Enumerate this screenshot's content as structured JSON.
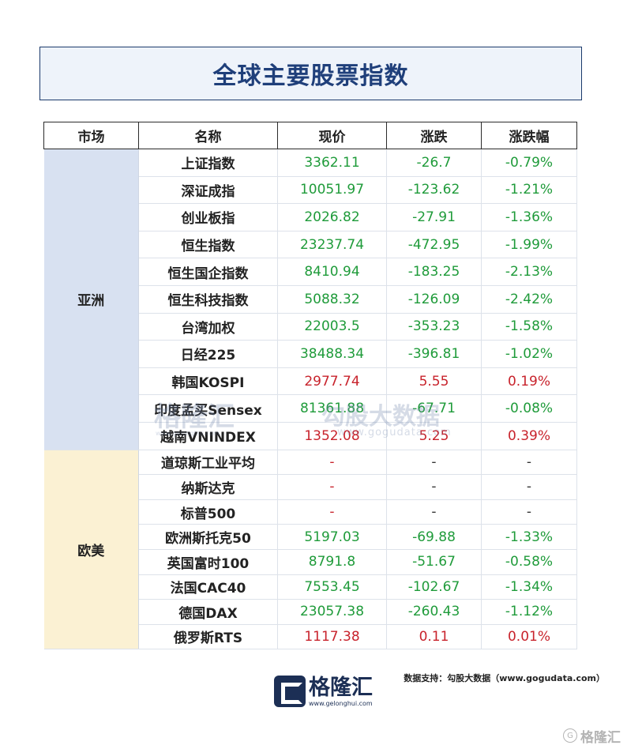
{
  "title": "全球主要股票指数",
  "headers": [
    "市场",
    "名称",
    "现价",
    "涨跌",
    "涨跌幅"
  ],
  "regions": {
    "asia": "亚洲",
    "euam": "欧美"
  },
  "asia_rows": [
    {
      "name": "上证指数",
      "price": "3362.11",
      "change": "-26.7",
      "pct": "-0.79%",
      "dir": "down"
    },
    {
      "name": "深证成指",
      "price": "10051.97",
      "change": "-123.62",
      "pct": "-1.21%",
      "dir": "down"
    },
    {
      "name": "创业板指",
      "price": "2026.82",
      "change": "-27.91",
      "pct": "-1.36%",
      "dir": "down"
    },
    {
      "name": "恒生指数",
      "price": "23237.74",
      "change": "-472.95",
      "pct": "-1.99%",
      "dir": "down"
    },
    {
      "name": "恒生国企指数",
      "price": "8410.94",
      "change": "-183.25",
      "pct": "-2.13%",
      "dir": "down"
    },
    {
      "name": "恒生科技指数",
      "price": "5088.32",
      "change": "-126.09",
      "pct": "-2.42%",
      "dir": "down"
    },
    {
      "name": "台湾加权",
      "price": "22003.5",
      "change": "-353.23",
      "pct": "-1.58%",
      "dir": "down"
    },
    {
      "name": "日经225",
      "price": "38488.34",
      "change": "-396.81",
      "pct": "-1.02%",
      "dir": "down"
    },
    {
      "name": "韩国KOSPI",
      "price": "2977.74",
      "change": "5.55",
      "pct": "0.19%",
      "dir": "up"
    },
    {
      "name": "印度孟买Sensex",
      "price": "81361.88",
      "change": "-67.71",
      "pct": "-0.08%",
      "dir": "down"
    },
    {
      "name": "越南VNINDEX",
      "price": "1352.08",
      "change": "5.25",
      "pct": "0.39%",
      "dir": "up"
    }
  ],
  "eu_rows": [
    {
      "name": "道琼斯工业平均",
      "price": "-",
      "change": "-",
      "pct": "-",
      "dir": "none"
    },
    {
      "name": "纳斯达克",
      "price": "-",
      "change": "-",
      "pct": "-",
      "dir": "none"
    },
    {
      "name": "标普500",
      "price": "-",
      "change": "-",
      "pct": "-",
      "dir": "none"
    },
    {
      "name": "欧洲斯托克50",
      "price": "5197.03",
      "change": "-69.88",
      "pct": "-1.33%",
      "dir": "down"
    },
    {
      "name": "英国富时100",
      "price": "8791.8",
      "change": "-51.67",
      "pct": "-0.58%",
      "dir": "down"
    },
    {
      "name": "法国CAC40",
      "price": "7553.45",
      "change": "-102.67",
      "pct": "-1.34%",
      "dir": "down"
    },
    {
      "name": "德国DAX",
      "price": "23057.38",
      "change": "-260.43",
      "pct": "-1.12%",
      "dir": "down"
    },
    {
      "name": "俄罗斯RTS",
      "price": "1117.38",
      "change": "0.11",
      "pct": "0.01%",
      "dir": "up"
    }
  ],
  "colors": {
    "up": "#c8232c",
    "down": "#1f9b3a",
    "title": "#1f3f7a",
    "asia_bg": "#d8e1f1",
    "euam_bg": "#fbf1d3"
  },
  "watermark": {
    "brand": "格隆汇",
    "site_cn": "勾股大数据",
    "site_url": "www.gogudata.com",
    "brand_url": "www.gelonghui.com"
  },
  "source": "数据支持：勾股大数据（www.gogudata.com）",
  "logo": {
    "cn": "格隆汇",
    "url": "www.gelonghui.com"
  },
  "corner": {
    "circle": "G",
    "text": "格隆汇"
  }
}
